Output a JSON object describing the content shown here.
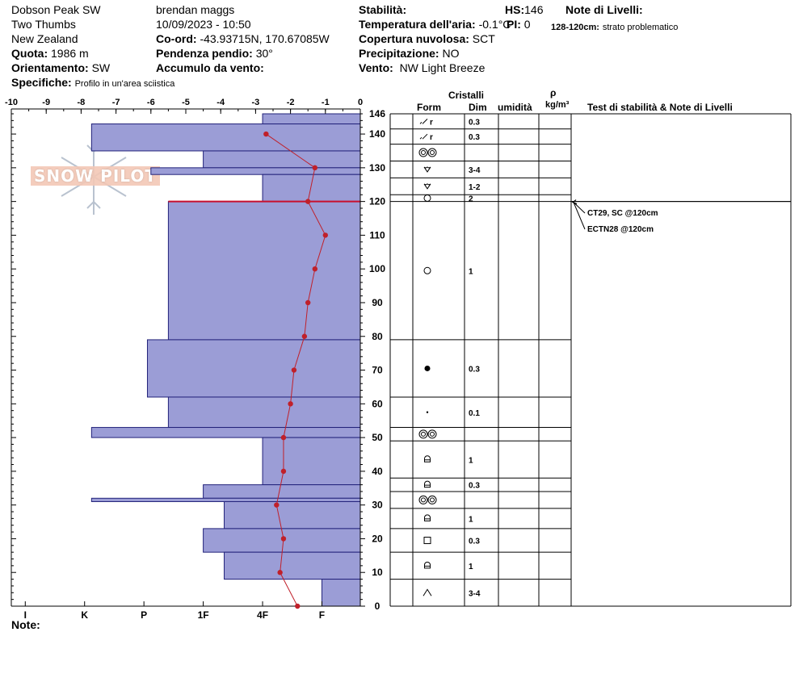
{
  "header": {
    "location": "Dobson Peak SW",
    "area": "Two Thumbs",
    "country": "New Zealand",
    "quota_label": "Quota:",
    "quota_value": "1986 m",
    "orientamento_label": "Orientamento:",
    "orientamento_value": "SW",
    "specifiche_label": "Specifiche:",
    "specifiche_value": "Profilo in un'area sciistica",
    "observer": "brendan maggs",
    "datetime": "10/09/2023 - 10:50",
    "coord_label": "Co-ord:",
    "coord_value": "-43.93715N, 170.67085W",
    "pendenza_label": "Pendenza pendio:",
    "pendenza_value": "30°",
    "accumulo_label": "Accumulo da vento:",
    "stabilita_label": "Stabilità:",
    "temp_label": "Temperatura dell'aria:",
    "temp_value": "-0.1°C",
    "copertura_label": "Copertura nuvolosa:",
    "copertura_value": "SCT",
    "precip_label": "Precipitazione:",
    "precip_value": "NO",
    "vento_label": "Vento:",
    "vento_value": "NW Light Breeze",
    "hs_label": "HS:",
    "hs_value": "146",
    "pi_label": "PI:",
    "pi_value": "0",
    "note_livelli_label": "Note di Livelli:",
    "note_livelli_range": "128-120cm:",
    "note_livelli_text": "strato problematico"
  },
  "table": {
    "cristalli_label": "Cristalli",
    "form_label": "Form",
    "dim_label": "Dim",
    "umidita_label": "umidità",
    "rho_label": "ρ",
    "kgm3_label": "kg/m³",
    "test_label": "Test di stabilità & Note di Livelli"
  },
  "note_label": "Note:",
  "watermark": "SNOW PILOT",
  "chart_data": {
    "type": "snow_profile",
    "hs": 146,
    "hardness_axis": {
      "label_values": [
        -10,
        -9,
        -8,
        -7,
        -6,
        -5,
        -4,
        -3,
        -2,
        -1,
        0
      ],
      "xlim": [
        -10,
        0
      ],
      "hand_hardness_ticks": [
        {
          "label": "I",
          "value": -9.6
        },
        {
          "label": "K",
          "value": -7.9
        },
        {
          "label": "P",
          "value": -6.2
        },
        {
          "label": "1F",
          "value": -4.5
        },
        {
          "label": "4F",
          "value": -2.8
        },
        {
          "label": "F",
          "value": -1.1
        }
      ]
    },
    "height_axis": {
      "ylim": [
        0,
        146
      ],
      "ticks": [
        0,
        10,
        20,
        30,
        40,
        50,
        60,
        70,
        80,
        90,
        100,
        110,
        120,
        130,
        140,
        146
      ]
    },
    "hardness_layers": [
      {
        "bottom": 143,
        "top": 146,
        "hardness": -2.8
      },
      {
        "bottom": 135,
        "top": 143,
        "hardness": -7.7
      },
      {
        "bottom": 130,
        "top": 135,
        "hardness": -4.5
      },
      {
        "bottom": 128,
        "top": 130,
        "hardness": -6.0
      },
      {
        "bottom": 120,
        "top": 128,
        "hardness": -2.8
      },
      {
        "bottom": 79,
        "top": 120,
        "hardness": -5.5
      },
      {
        "bottom": 62,
        "top": 79,
        "hardness": -6.1
      },
      {
        "bottom": 53,
        "top": 62,
        "hardness": -5.5
      },
      {
        "bottom": 50,
        "top": 53,
        "hardness": -7.7
      },
      {
        "bottom": 36,
        "top": 50,
        "hardness": -2.8
      },
      {
        "bottom": 32,
        "top": 36,
        "hardness": -4.5
      },
      {
        "bottom": 31,
        "top": 32,
        "hardness": -7.7
      },
      {
        "bottom": 23,
        "top": 31,
        "hardness": -3.9
      },
      {
        "bottom": 16,
        "top": 23,
        "hardness": -4.5
      },
      {
        "bottom": 8,
        "top": 16,
        "hardness": -3.9
      },
      {
        "bottom": 0,
        "top": 8,
        "hardness": -1.1
      }
    ],
    "problem_layer_height": 120,
    "temperature_profile": [
      {
        "h": 140,
        "t": -2.7
      },
      {
        "h": 130,
        "t": -1.3
      },
      {
        "h": 120,
        "t": -1.5
      },
      {
        "h": 110,
        "t": -1.0
      },
      {
        "h": 100,
        "t": -1.3
      },
      {
        "h": 90,
        "t": -1.5
      },
      {
        "h": 80,
        "t": -1.6
      },
      {
        "h": 70,
        "t": -1.9
      },
      {
        "h": 60,
        "t": -2.0
      },
      {
        "h": 50,
        "t": -2.2
      },
      {
        "h": 40,
        "t": -2.2
      },
      {
        "h": 30,
        "t": -2.4
      },
      {
        "h": 20,
        "t": -2.2
      },
      {
        "h": 10,
        "t": -2.3
      },
      {
        "h": 0,
        "t": -1.8
      }
    ],
    "layer_rows": [
      {
        "top": 146,
        "bottom": 141.5,
        "form": "decomposing",
        "dim": "0.3"
      },
      {
        "top": 141.5,
        "bottom": 137,
        "form": "decomposing",
        "dim": "0.3"
      },
      {
        "top": 137,
        "bottom": 132,
        "form": "melt-freeze",
        "dim": ""
      },
      {
        "top": 132,
        "bottom": 127,
        "form": "surface-hoar",
        "dim": "3-4"
      },
      {
        "top": 127,
        "bottom": 122,
        "form": "surface-hoar",
        "dim": "1-2"
      },
      {
        "top": 122,
        "bottom": 120,
        "form": "rounded",
        "dim": "2"
      },
      {
        "top": 120,
        "bottom": 79,
        "form": "rounded",
        "dim": "1"
      },
      {
        "top": 79,
        "bottom": 62,
        "form": "graupel",
        "dim": "0.3"
      },
      {
        "top": 62,
        "bottom": 53,
        "form": "precip-particle",
        "dim": "0.1"
      },
      {
        "top": 53,
        "bottom": 49,
        "form": "melt-freeze",
        "dim": ""
      },
      {
        "top": 49,
        "bottom": 38,
        "form": "faceted-rounded",
        "dim": "1"
      },
      {
        "top": 38,
        "bottom": 34,
        "form": "faceted-rounded",
        "dim": "0.3"
      },
      {
        "top": 34,
        "bottom": 29,
        "form": "melt-freeze",
        "dim": ""
      },
      {
        "top": 29,
        "bottom": 23,
        "form": "faceted-rounded",
        "dim": "1"
      },
      {
        "top": 23,
        "bottom": 16,
        "form": "faceted",
        "dim": "0.3"
      },
      {
        "top": 16,
        "bottom": 8,
        "form": "faceted-rounded",
        "dim": "1"
      },
      {
        "top": 8,
        "bottom": 0,
        "form": "depth-hoar",
        "dim": "3-4"
      }
    ],
    "stability_tests": [
      {
        "label": "CT29, SC @120cm",
        "height": 120
      },
      {
        "label": "ECTN28 @120cm",
        "height": 120
      }
    ]
  }
}
